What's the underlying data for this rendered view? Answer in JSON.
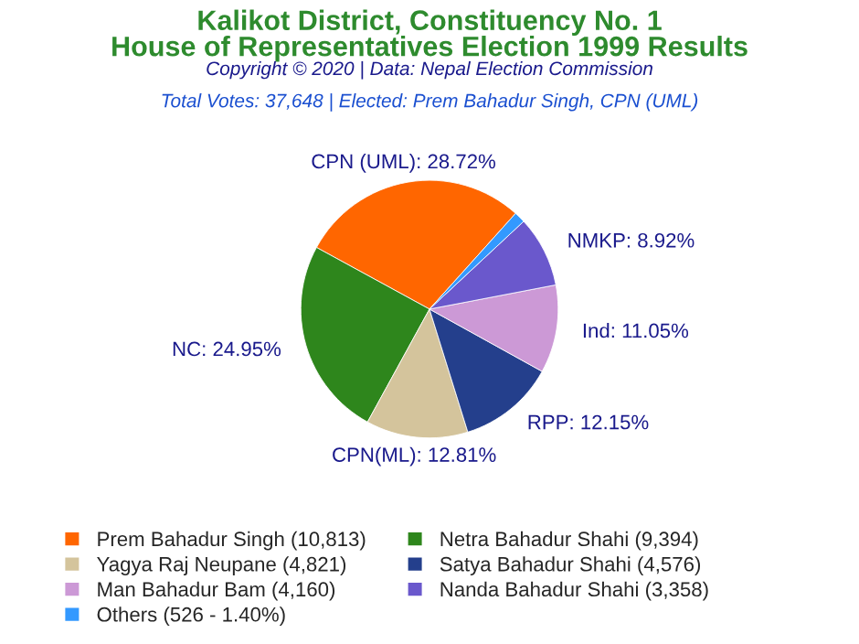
{
  "chart_data": {
    "type": "pie",
    "title": "Kalikot District, Constituency No. 1\nHouse of Representatives Election 1999 Results",
    "subtitle": "Copyright © 2020 | Data: Nepal Election Commission",
    "annotations": [
      "Total Votes: 37,648 | Elected: Prem Bahadur Singh, CPN (UML)"
    ],
    "categories": [
      "Prem Bahadur Singh (10,813)",
      "Netra Bahadur Shahi (9,394)",
      "Yagya Raj Neupane (4,821)",
      "Satya Bahadur Shahi (4,576)",
      "Man Bahadur Bam (4,160)",
      "Nanda Bahadur Shahi (3,358)",
      "Others (526 - 1.40%)"
    ],
    "values": [
      28.72,
      24.95,
      12.81,
      12.15,
      11.05,
      8.92,
      1.4
    ],
    "value_labels": [
      "CPN (UML): 28.72%",
      "NC: 24.95%",
      "CPN(ML): 12.81%",
      "RPP: 12.15%",
      "Ind: 11.05%",
      "NMKP: 8.92%",
      null
    ],
    "colors": [
      "#ff6600",
      "#2e861c",
      "#d4c49c",
      "#243f8c",
      "#cc99d6",
      "#6a58cc",
      "#3399ff"
    ],
    "legend": "bottom"
  }
}
